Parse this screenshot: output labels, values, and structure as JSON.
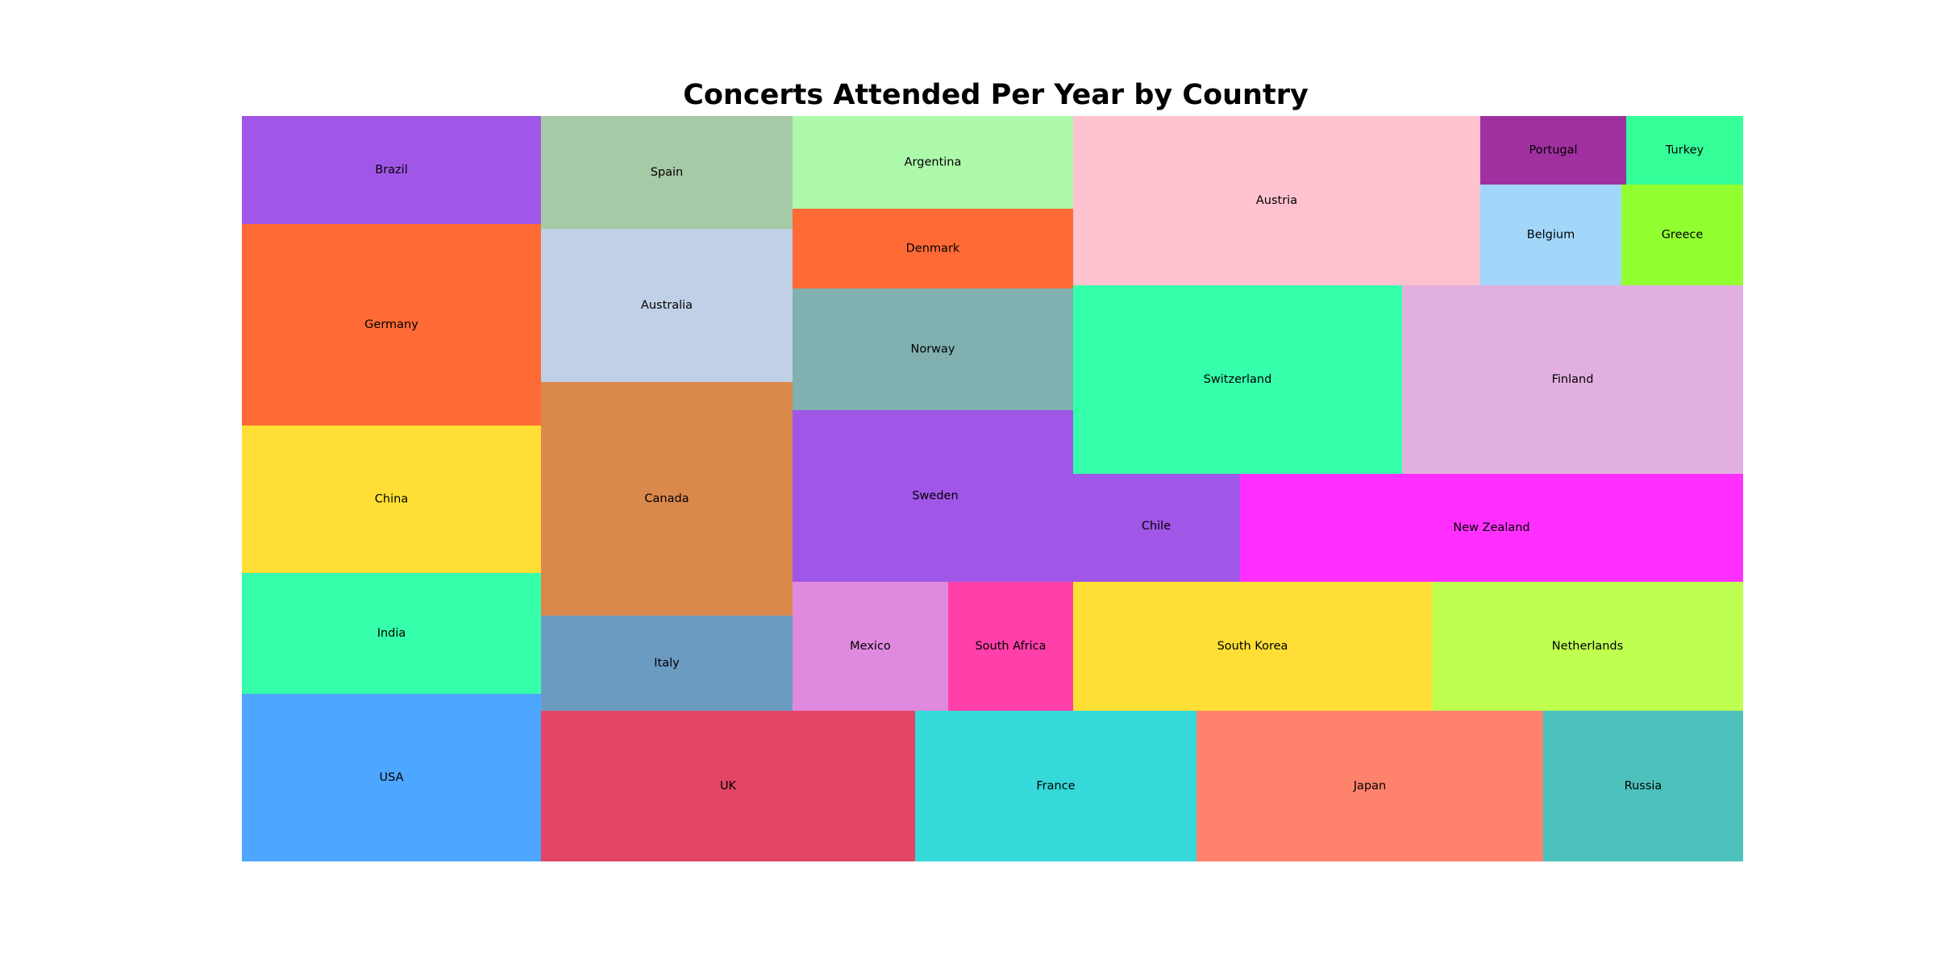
{
  "chart_data": {
    "type": "treemap",
    "title": "Concerts Attended Per Year by Country",
    "items": [
      {
        "label": "Brazil",
        "color": "#A056E6"
      },
      {
        "label": "Germany",
        "color": "#FF6A35"
      },
      {
        "label": "China",
        "color": "#FFDF35"
      },
      {
        "label": "India",
        "color": "#35FFAA"
      },
      {
        "label": "USA",
        "color": "#4DA6FF"
      },
      {
        "label": "Spain",
        "color": "#A6C9A6"
      },
      {
        "label": "Australia",
        "color": "#C0D0E6"
      },
      {
        "label": "Canada",
        "color": "#DA884C"
      },
      {
        "label": "Italy",
        "color": "#6C9BC2"
      },
      {
        "label": "UK",
        "color": "#E24664"
      },
      {
        "label": "Argentina",
        "color": "#ADFAAB"
      },
      {
        "label": "Denmark",
        "color": "#FF6A35"
      },
      {
        "label": "Norway",
        "color": "#80B0B0"
      },
      {
        "label": "Sweden",
        "color": "#A056E6"
      },
      {
        "label": "Mexico",
        "color": "#E08ADF"
      },
      {
        "label": "South Africa",
        "color": "#FF40AA"
      },
      {
        "label": "France",
        "color": "#35D9D9"
      },
      {
        "label": "Austria",
        "color": "#FFC2CF"
      },
      {
        "label": "Portugal",
        "color": "#A030A0"
      },
      {
        "label": "Turkey",
        "color": "#35FF99"
      },
      {
        "label": "Belgium",
        "color": "#A2D7F9"
      },
      {
        "label": "Greece",
        "color": "#92FF30"
      },
      {
        "label": "Switzerland",
        "color": "#35FFAA"
      },
      {
        "label": "Finland",
        "color": "#E1B0E1"
      },
      {
        "label": "Chile",
        "color": "#A056E6"
      },
      {
        "label": "New Zealand",
        "color": "#FF30FF"
      },
      {
        "label": "South Korea",
        "color": "#FFDF35"
      },
      {
        "label": "Netherlands",
        "color": "#BEFF50"
      },
      {
        "label": "Japan",
        "color": "#FF836C"
      },
      {
        "label": "Russia",
        "color": "#4DC2BD"
      }
    ]
  }
}
